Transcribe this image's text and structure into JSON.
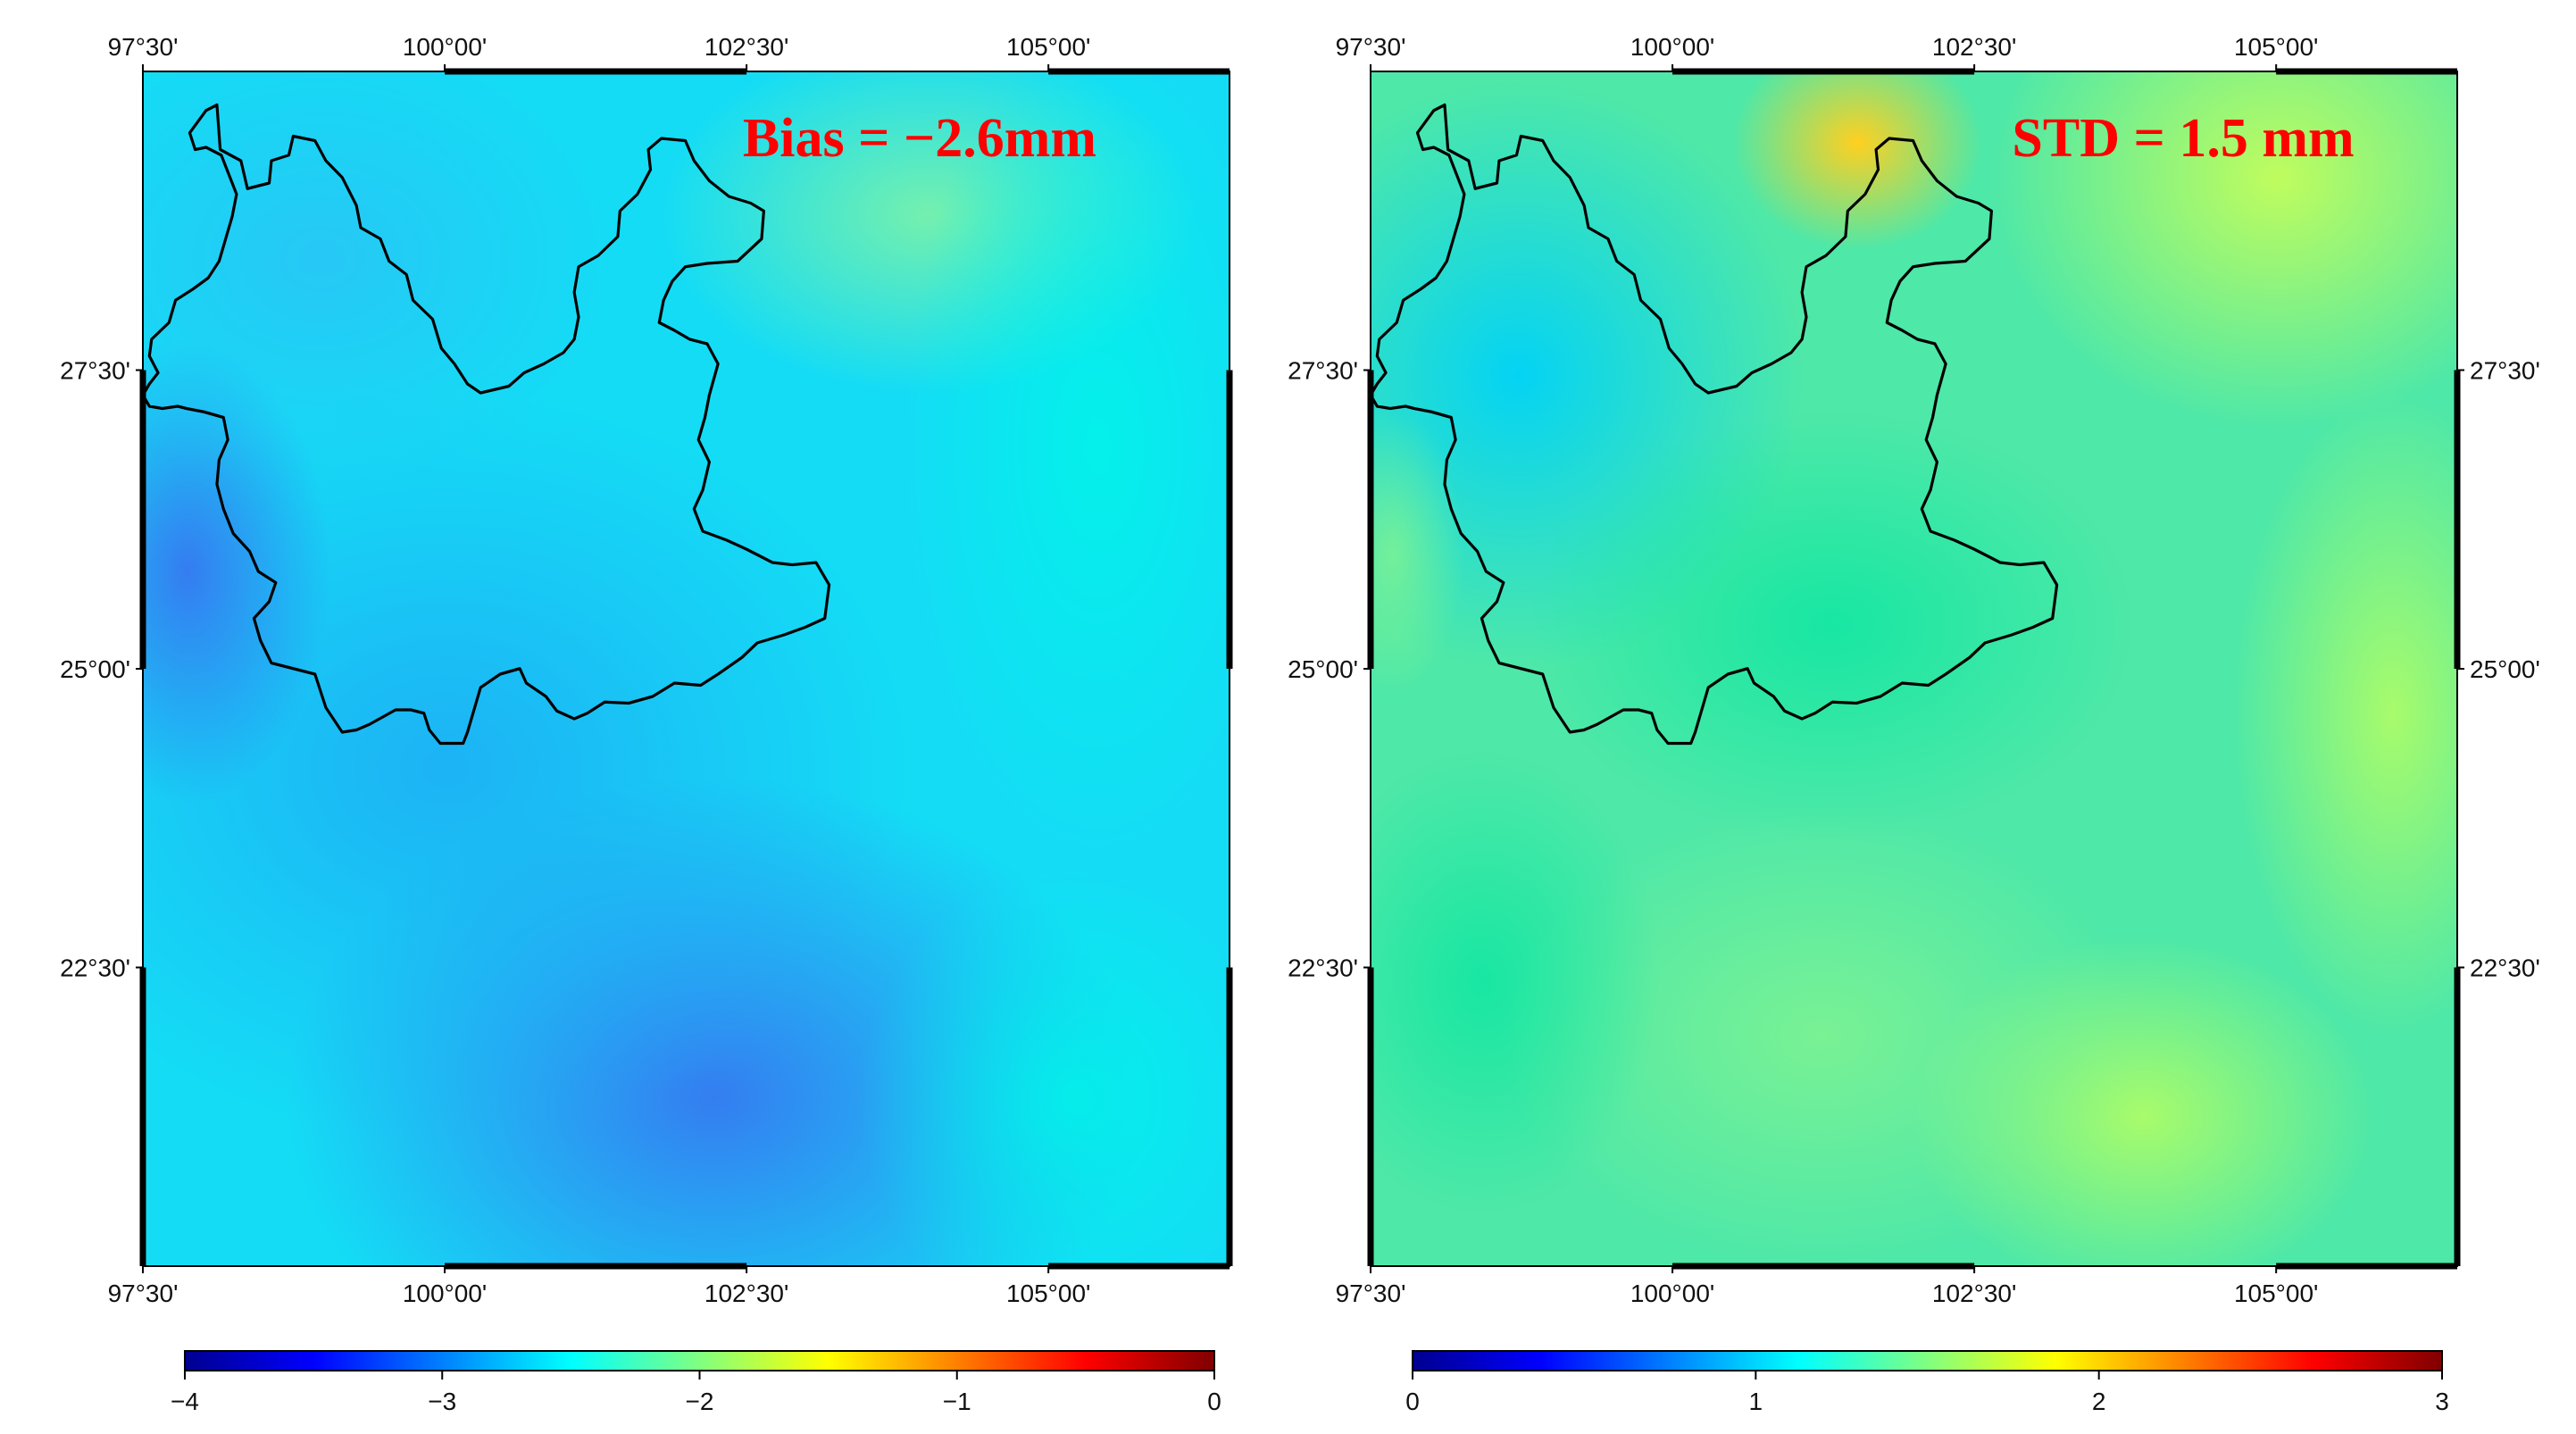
{
  "colors": {
    "stat_text": "#ff0000",
    "frame": "#000000",
    "boundary": "#000000"
  },
  "axes": {
    "x_ticks": [
      {
        "value": 97.5,
        "label": "97°30'"
      },
      {
        "value": 100.0,
        "label": "100°00'"
      },
      {
        "value": 102.5,
        "label": "102°30'"
      },
      {
        "value": 105.0,
        "label": "105°00'"
      }
    ],
    "y_ticks": [
      {
        "value": 27.5,
        "label": "27°30'"
      },
      {
        "value": 25.0,
        "label": "25°00'"
      },
      {
        "value": 22.5,
        "label": "22°30'"
      }
    ]
  },
  "panels": [
    {
      "stat": "Bias = −2.6mm",
      "colorbar": {
        "min": -4,
        "max": 0,
        "labels": [
          "−4",
          "−3",
          "−2",
          "−1",
          "0"
        ],
        "colors": [
          "#00008f",
          "#0000ff",
          "#0080ff",
          "#00ffff",
          "#80ff80",
          "#ffff00",
          "#ff8000",
          "#ff0000",
          "#800000"
        ]
      }
    },
    {
      "stat": "STD = 1.5 mm",
      "colorbar": {
        "min": 0,
        "max": 3,
        "labels": [
          "0",
          "1",
          "2",
          "3"
        ],
        "colors": [
          "#00008f",
          "#0000ff",
          "#0080ff",
          "#00ffff",
          "#80ff80",
          "#ffff00",
          "#ff8000",
          "#ff0000",
          "#800000"
        ]
      }
    }
  ]
}
